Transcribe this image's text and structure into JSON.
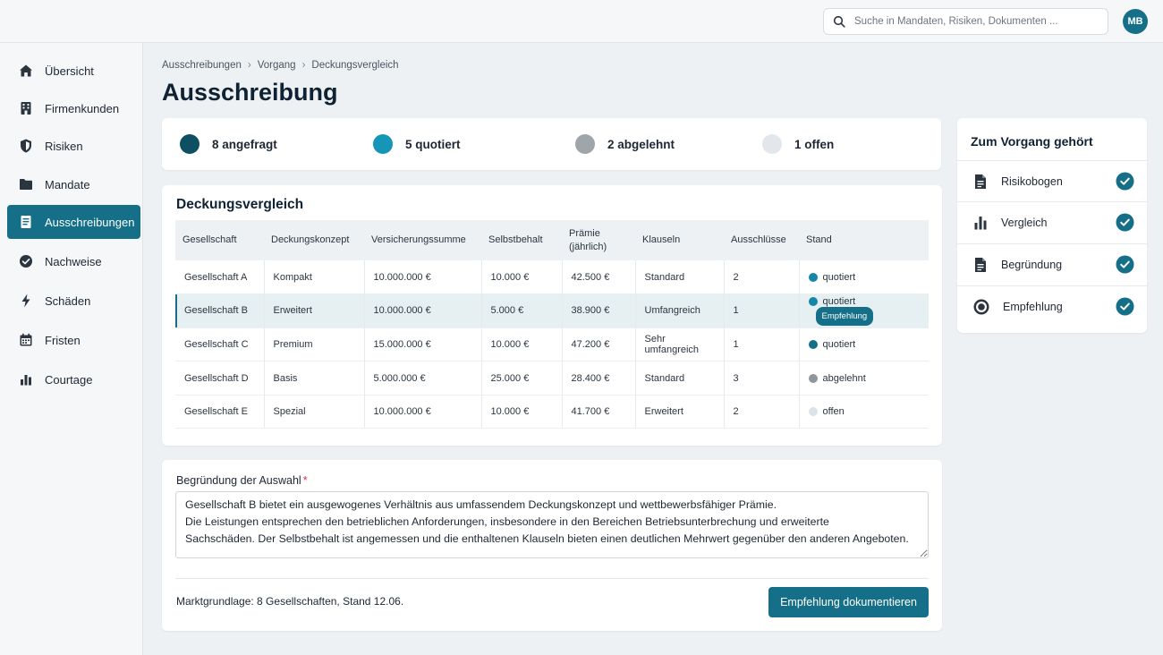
{
  "search": {
    "placeholder": "Suche in Mandaten, Risiken, Dokumenten ..."
  },
  "user": {
    "initials": "MB"
  },
  "sidebar": {
    "items": [
      {
        "label": "Übersicht",
        "icon": "home-icon"
      },
      {
        "label": "Firmenkunden",
        "icon": "building-icon"
      },
      {
        "label": "Risiken",
        "icon": "shield-icon"
      },
      {
        "label": "Mandate",
        "icon": "folder-icon"
      },
      {
        "label": "Ausschreibungen",
        "icon": "document-icon",
        "active": true
      },
      {
        "label": "Nachweise",
        "icon": "check-circle-icon"
      },
      {
        "label": "Schäden",
        "icon": "lightning-icon"
      },
      {
        "label": "Fristen",
        "icon": "calendar-icon"
      },
      {
        "label": "Courtage",
        "icon": "bar-chart-icon"
      }
    ]
  },
  "breadcrumb": [
    "Ausschreibungen",
    "Vorgang",
    "Deckungsvergleich"
  ],
  "page_title": "Ausschreibung",
  "status": [
    {
      "label": "8 angefragt",
      "color": "#0f4f64"
    },
    {
      "label": "5 quotiert",
      "color": "#1596b8"
    },
    {
      "label": "2 abgelehnt",
      "color": "#9ea5ab"
    },
    {
      "label": "1 offen",
      "color": "#e3e7ea"
    }
  ],
  "comparison": {
    "title": "Deckungsvergleich",
    "headers": [
      "Gesellschaft",
      "Deckungskonzept",
      "Versicherungssumme",
      "Selbstbehalt",
      "Prämie (jährlich)",
      "Klauseln",
      "Ausschlüsse",
      "Stand"
    ],
    "rows": [
      {
        "cells": [
          "Gesellschaft A",
          "Kompakt",
          "10.000.000 €",
          "10.000 €",
          "42.500 €",
          "Standard",
          "2"
        ],
        "status": "quotiert",
        "status_color": "#1586a6"
      },
      {
        "cells": [
          "Gesellschaft B",
          "Erweitert",
          "10.000.000 €",
          "5.000 €",
          "38.900 €",
          "Umfangreich",
          "1"
        ],
        "status": "quotiert",
        "status_color": "#1586a6",
        "badge": "Empfehlung",
        "selected": true
      },
      {
        "cells": [
          "Gesellschaft C",
          "Premium",
          "15.000.000 €",
          "10.000 €",
          "47.200 €",
          "Sehr umfangreich",
          "1"
        ],
        "status": "quotiert",
        "status_color": "#156f88"
      },
      {
        "cells": [
          "Gesellschaft D",
          "Basis",
          "5.000.000 €",
          "25.000 €",
          "28.400 €",
          "Standard",
          "3"
        ],
        "status": "abgelehnt",
        "status_color": "#8f969c"
      },
      {
        "cells": [
          "Gesellschaft E",
          "Spezial",
          "10.000.000 €",
          "10.000 €",
          "41.700 €",
          "Erweitert",
          "2"
        ],
        "status": "offen",
        "status_color": "#dde2e6"
      }
    ]
  },
  "reason": {
    "label": "Begründung der Auswahl",
    "required_mark": "*",
    "text": "Gesellschaft B bietet ein ausgewogenes Verhältnis aus umfassendem Deckungskonzept und wettbewerbsfähiger Prämie.\nDie Leistungen entsprechen den betrieblichen Anforderungen, insbesondere in den Bereichen Betriebsunterbrechung und erweiterte\nSachschäden. Der Selbstbehalt ist angemessen und die enthaltenen Klauseln bieten einen deutlichen Mehrwert gegenüber den anderen Angeboten.",
    "market_note": "Marktgrundlage: 8 Gesellschaften, Stand 12.06.",
    "button_label": "Empfehlung dokumentieren"
  },
  "related": {
    "title": "Zum Vorgang gehört",
    "items": [
      {
        "label": "Risikobogen",
        "icon": "document-icon",
        "done": true
      },
      {
        "label": "Vergleich",
        "icon": "bar-chart-icon",
        "done": true
      },
      {
        "label": "Begründung",
        "icon": "document-icon",
        "done": true
      },
      {
        "label": "Empfehlung",
        "icon": "target-icon",
        "done": true
      }
    ]
  },
  "colors": {
    "accent": "#156f88",
    "background": "#eef1f4"
  }
}
